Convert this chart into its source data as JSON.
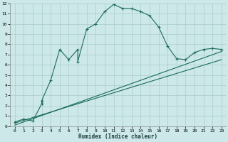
{
  "xlabel": "Humidex (Indice chaleur)",
  "bg_color": "#cce8e8",
  "grid_color": "#aacccc",
  "line_color": "#1a6b5a",
  "curve_x": [
    0,
    1,
    2,
    3,
    3,
    4,
    5,
    6,
    7,
    7,
    8,
    9,
    10,
    11,
    12,
    13,
    14,
    15,
    16,
    17,
    18,
    19,
    20,
    21,
    22,
    23
  ],
  "curve_y": [
    0.4,
    0.7,
    0.5,
    2.2,
    2.5,
    4.5,
    7.5,
    6.5,
    7.5,
    6.3,
    9.5,
    10.0,
    11.2,
    11.9,
    11.5,
    11.5,
    11.2,
    10.8,
    9.7,
    7.8,
    6.6,
    6.5,
    7.2,
    7.5,
    7.6,
    7.5
  ],
  "line2_x": [
    0,
    23
  ],
  "line2_y": [
    0.3,
    6.5
  ],
  "line3_x": [
    0,
    23
  ],
  "line3_y": [
    0.1,
    7.3
  ],
  "xlim": [
    -0.5,
    23.5
  ],
  "ylim": [
    0,
    12
  ],
  "xticks": [
    0,
    1,
    2,
    3,
    4,
    5,
    6,
    7,
    8,
    9,
    10,
    11,
    12,
    13,
    14,
    15,
    16,
    17,
    18,
    19,
    20,
    21,
    22,
    23
  ],
  "yticks": [
    0,
    1,
    2,
    3,
    4,
    5,
    6,
    7,
    8,
    9,
    10,
    11,
    12
  ]
}
